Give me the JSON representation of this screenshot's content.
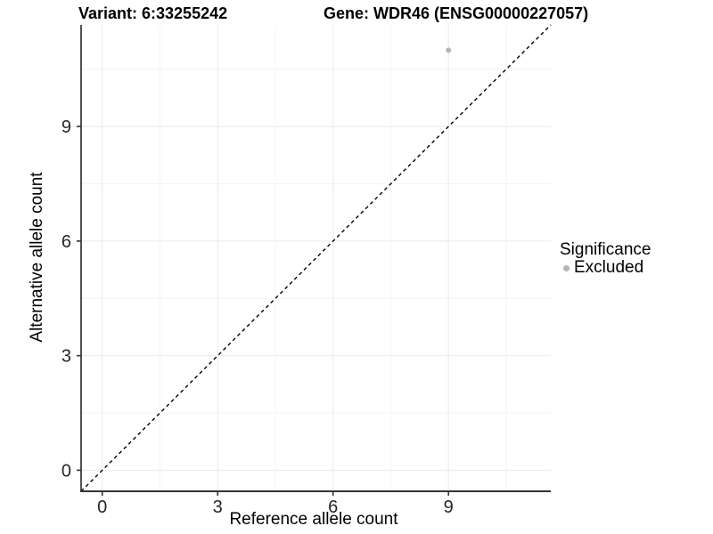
{
  "chart_data": {
    "type": "scatter",
    "title_left": "Variant: 6:33255242",
    "title_right": "Gene: WDR46 (ENSG00000227057)",
    "xlabel": "Reference allele count",
    "ylabel": "Alternative allele count",
    "xlim": [
      -0.55,
      11.66
    ],
    "ylim": [
      -0.55,
      11.66
    ],
    "x_ticks": [
      0,
      3,
      6,
      9
    ],
    "y_ticks": [
      0,
      3,
      6,
      9
    ],
    "minor_ticks": [
      1.5,
      4.5,
      7.5,
      10.5
    ],
    "grid": true,
    "legend_position": "right",
    "reference_line": {
      "equation": "y = x",
      "style": "dashed",
      "color": "#000000"
    },
    "points": [
      {
        "x": 9,
        "y": 11,
        "significance": "Excluded",
        "color": "#b5b5b5"
      }
    ],
    "legend": {
      "title": "Significance",
      "items": [
        {
          "label": "Excluded",
          "color": "#b5b5b5",
          "marker": "point"
        }
      ]
    },
    "colors": {
      "axis": "#333333",
      "grid_major": "#e9e9e9",
      "grid_minor": "#f4f4f4",
      "tick_label": "#262626"
    }
  }
}
